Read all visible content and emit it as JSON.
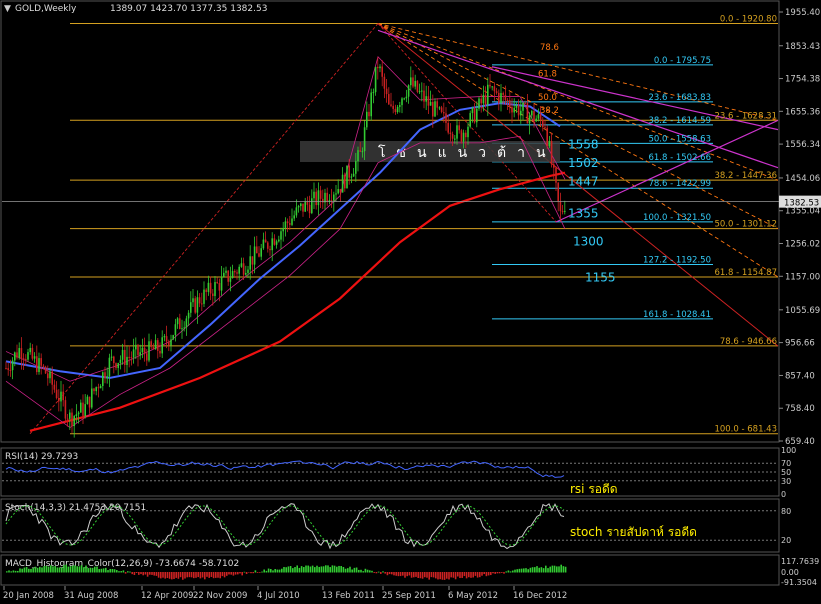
{
  "window": {
    "symbol": "GOLD,Weekly",
    "ohlc": "1389.07 1423.70 1377.35 1382.53"
  },
  "chart_data": {
    "type": "candlestick",
    "main": {
      "ylim": [
        659.4,
        1955.4
      ],
      "price_ticks": [
        "1955.40",
        "1853.43",
        "1754.38",
        "1655.36",
        "1556.34",
        "1454.06",
        "1355.04",
        "1256.02",
        "1157.00",
        "1055.69",
        "956.66",
        "857.40",
        "758.40",
        "659.40"
      ],
      "current_price": "1382.53",
      "outer_fib": [
        {
          "label": "0.0 - 1920.80",
          "value": 1920.8
        },
        {
          "label": "23.6 - 1628.31",
          "value": 1628.31
        },
        {
          "label": "38.2 - 1447.36",
          "value": 1447.36
        },
        {
          "label": "50.0 - 1301.12",
          "value": 1301.12
        },
        {
          "label": "61.8 - 1154.87",
          "value": 1154.87
        },
        {
          "label": "78.6 - 946.66",
          "value": 946.66
        },
        {
          "label": "100.0 - 681.43",
          "value": 681.43
        }
      ],
      "inner_fib": [
        {
          "label": "0.0 - 1795.75",
          "value": 1795.75
        },
        {
          "label": "23.6 - 1683.83",
          "value": 1683.83
        },
        {
          "label": "38.2 - 1614.59",
          "value": 1614.59
        },
        {
          "label": "50.0 - 1558.63",
          "value": 1558.63
        },
        {
          "label": "61.8 - 1502.66",
          "value": 1502.66
        },
        {
          "label": "78.6 - 1422.99",
          "value": 1422.99
        },
        {
          "label": "100.0 - 1321.50",
          "value": 1321.5
        },
        {
          "label": "127.2 - 1192.50",
          "value": 1192.5
        },
        {
          "label": "161.8 - 1028.41",
          "value": 1028.41
        }
      ],
      "fan_labels": [
        "78.6",
        "61.8",
        "50.0",
        "38.2"
      ],
      "levels": [
        "1558",
        "1502",
        "1447",
        "1355",
        "1300",
        "1155"
      ],
      "resistance_zone_label": "โซนแนวต้าน"
    },
    "x_ticks": [
      "20 Jan 2008",
      "31 Aug 2008",
      "12 Apr 2009",
      "22 Nov 2009",
      "4 Jul 2010",
      "13 Feb 2011",
      "25 Sep 2011",
      "6 May 2012",
      "16 Dec 2012"
    ],
    "rsi": {
      "title": "RSI(14) 29.7293",
      "ticks": [
        "100",
        "70",
        "50",
        "30",
        "0"
      ],
      "annotation": "rsi รอดีด"
    },
    "stoch": {
      "title": "Stoch(14,3,3) 21.4753 20.7151",
      "ticks": [
        "80",
        "20"
      ],
      "annotation": "stoch รายสัปดาห์ รอดีด"
    },
    "macd": {
      "title": "MACD_Histogram_Color(12,26,9) -73.6674 -58.7102",
      "ticks": [
        "117.7639",
        "0.00",
        "-91.3504"
      ]
    },
    "colors": {
      "background": "#000000",
      "candle_up": "#33cc33",
      "candle_down": "#cc2222",
      "ma_fast": "#4466ff",
      "ma_slow": "#ee1111",
      "bands": "#cc2288",
      "fib_outer": "#d4a020",
      "fib_inner": "#33c9f5",
      "fan": "#ff7711",
      "channel": "#cc33cc",
      "label_cyan": "#33c9f5",
      "label_yellow": "#ffee00"
    }
  }
}
